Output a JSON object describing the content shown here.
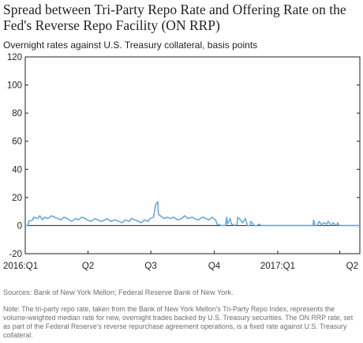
{
  "chart_data": {
    "type": "line",
    "title": "Spread between Tri-Party Repo Rate and Offering Rate on the Fed's Reverse Repo Facility (ON RRP)",
    "subtitle": "Overnight rates against U.S. Treasury collateral, basis points",
    "xlabel": "",
    "ylabel": "",
    "ylim": [
      -20,
      120
    ],
    "yticks": [
      "120",
      "100",
      "80",
      "60",
      "40",
      "20",
      "0",
      "-20"
    ],
    "xticks": [
      "2016:Q1",
      "Q2",
      "Q3",
      "Q4",
      "2017:Q1",
      "Q2"
    ],
    "x_start": "2016-01-01",
    "x_end": "2017-04-30",
    "zero_line": true,
    "grid": false,
    "series": [
      {
        "color": "#6ba9d8",
        "x": [
          "2016-01-01",
          "2016-01-05",
          "2016-01-06",
          "2016-01-12",
          "2016-01-13",
          "2016-01-19",
          "2016-01-22",
          "2016-01-26",
          "2016-01-29",
          "2016-02-03",
          "2016-02-08",
          "2016-02-12",
          "2016-02-17",
          "2016-02-22",
          "2016-02-26",
          "2016-03-02",
          "2016-03-08",
          "2016-03-14",
          "2016-03-18",
          "2016-03-23",
          "2016-03-28",
          "2016-03-31",
          "2016-04-05",
          "2016-04-11",
          "2016-04-15",
          "2016-04-20",
          "2016-04-26",
          "2016-04-29",
          "2016-05-04",
          "2016-05-10",
          "2016-05-16",
          "2016-05-20",
          "2016-05-25",
          "2016-05-31",
          "2016-06-03",
          "2016-06-08",
          "2016-06-13",
          "2016-06-17",
          "2016-06-22",
          "2016-06-27",
          "2016-06-30",
          "2016-07-05",
          "2016-07-08",
          "2016-07-11",
          "2016-07-12",
          "2016-07-15",
          "2016-07-20",
          "2016-07-25",
          "2016-07-29",
          "2016-08-03",
          "2016-08-09",
          "2016-08-15",
          "2016-08-19",
          "2016-08-24",
          "2016-08-30",
          "2016-09-02",
          "2016-09-08",
          "2016-09-14",
          "2016-09-19",
          "2016-09-23",
          "2016-09-28",
          "2016-09-30",
          "2016-10-03",
          "2016-10-05",
          "2016-10-12",
          "2016-10-17",
          "2016-10-19",
          "2016-10-20",
          "2016-10-24",
          "2016-10-26",
          "2016-10-31",
          "2016-11-03",
          "2016-11-04",
          "2016-11-08",
          "2016-11-11",
          "2016-11-15",
          "2016-11-18",
          "2016-11-22",
          "2016-11-23",
          "2016-11-28",
          "2016-12-02",
          "2016-12-05",
          "2016-12-08",
          "2016-12-12",
          "2016-12-15",
          "2016-12-20",
          "2016-12-27",
          "2017-01-05",
          "2017-01-15",
          "2017-01-25",
          "2017-02-05",
          "2017-02-15",
          "2017-02-21",
          "2017-02-22",
          "2017-02-24",
          "2017-02-27",
          "2017-03-02",
          "2017-03-06",
          "2017-03-08",
          "2017-03-13",
          "2017-03-15",
          "2017-03-20",
          "2017-03-22",
          "2017-03-27",
          "2017-03-29",
          "2017-03-31",
          "2017-04-03",
          "2017-04-30"
        ],
        "y": [
          0,
          0,
          3,
          4,
          6,
          5,
          7,
          4,
          6,
          5,
          7,
          6,
          5,
          4,
          6,
          5,
          3,
          5,
          4,
          6,
          5,
          4,
          3,
          5,
          4,
          3,
          4,
          5,
          3,
          4,
          3,
          2,
          4,
          3,
          5,
          4,
          3,
          2,
          4,
          3,
          5,
          6,
          15,
          17,
          8,
          7,
          5,
          6,
          5,
          6,
          4,
          5,
          7,
          5,
          6,
          5,
          4,
          6,
          5,
          4,
          6,
          5,
          4,
          1,
          0,
          0,
          6,
          1,
          5,
          1,
          0,
          1,
          6,
          4,
          2,
          5,
          0,
          0,
          3,
          0,
          0,
          1,
          0,
          0,
          0,
          0,
          0,
          0,
          0,
          0,
          0,
          0,
          0,
          4,
          0,
          0,
          3,
          0,
          2,
          1,
          3,
          0,
          2,
          0,
          2,
          0,
          0,
          0
        ]
      }
    ]
  },
  "source": "Sources: Bank of New York Mellon; Federal Reserve Bank of New York.",
  "note": "Note: The tri-party repo rate, taken from the Bank of New York Mellon's Tri-Party Repo Index, represents the volume-weighted median rate for new, overnight trades backed by U.S. Treasury securities. The ON RRP rate, set as part of the Federal Reserve's reverse repurchase agreement operations, is a fixed rate against U.S. Treasury collateral."
}
